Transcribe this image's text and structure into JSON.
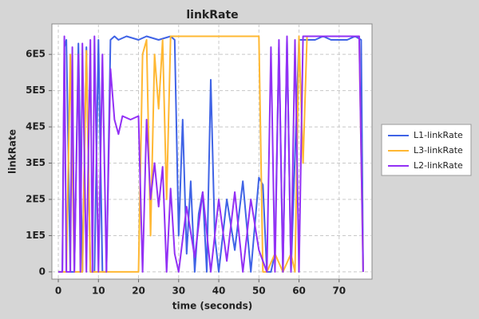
{
  "chart_data": {
    "type": "line",
    "title": "linkRate",
    "x_label": "time (seconds)",
    "y_label": "linkRate",
    "xlim": [
      -1.6,
      78.2
    ],
    "xticks": [
      0,
      10,
      20,
      30,
      40,
      50,
      60,
      70
    ],
    "ylim": [
      -20000,
      684000
    ],
    "yticks": [
      0,
      {
        "value": 100000,
        "label": "1E5"
      },
      {
        "value": 200000,
        "label": "2E5"
      },
      {
        "value": 300000,
        "label": "3E5"
      },
      {
        "value": 400000,
        "label": "4E5"
      },
      {
        "value": 500000,
        "label": "5E5"
      },
      {
        "value": 600000,
        "label": "6E5"
      }
    ],
    "grid": true,
    "legend": "right",
    "series": [
      {
        "name": "L1-linkRate",
        "color": "#3f63e6",
        "x": [
          0,
          1,
          1.5,
          2,
          3,
          4,
          5,
          6,
          7,
          8,
          9,
          10,
          11,
          12,
          13,
          14,
          15,
          17,
          20,
          22,
          25,
          28,
          29,
          30,
          31,
          32,
          33,
          34,
          35,
          36,
          37,
          38,
          39,
          40,
          42,
          44,
          46,
          48,
          50,
          51,
          52,
          53,
          54,
          55,
          56,
          57,
          58,
          60,
          62,
          64,
          66,
          68,
          70,
          72,
          74,
          75.5,
          76
        ],
        "values": [
          0,
          0,
          620000,
          640000,
          0,
          0,
          630000,
          0,
          620000,
          0,
          0,
          640000,
          0,
          0,
          640000,
          650000,
          640000,
          650000,
          640000,
          650000,
          640000,
          650000,
          640000,
          100000,
          420000,
          50000,
          250000,
          0,
          160000,
          220000,
          0,
          530000,
          100000,
          0,
          200000,
          60000,
          250000,
          0,
          260000,
          240000,
          0,
          0,
          50000,
          620000,
          0,
          640000,
          0,
          640000,
          640000,
          640000,
          650000,
          640000,
          640000,
          640000,
          650000,
          640000,
          0
        ]
      },
      {
        "name": "L3-linkRate",
        "color": "#ffb833",
        "x": [
          0,
          2,
          3,
          4,
          6,
          7,
          8,
          10,
          12,
          14,
          16,
          18,
          20,
          21,
          22,
          23,
          24,
          25,
          26,
          27,
          28,
          30,
          35,
          40,
          45,
          50,
          51,
          52,
          54,
          56,
          58,
          59,
          60,
          61,
          62,
          65,
          70,
          75,
          76
        ],
        "values": [
          0,
          0,
          600000,
          0,
          0,
          610000,
          0,
          0,
          0,
          0,
          0,
          0,
          0,
          600000,
          640000,
          100000,
          600000,
          450000,
          640000,
          200000,
          650000,
          650000,
          650000,
          650000,
          650000,
          650000,
          0,
          0,
          50000,
          0,
          50000,
          0,
          650000,
          300000,
          650000,
          650000,
          650000,
          650000,
          0
        ]
      },
      {
        "name": "L2-linkRate",
        "color": "#9230f5",
        "x": [
          0,
          1,
          1.5,
          2,
          3,
          3.5,
          4,
          5,
          5.5,
          6,
          7,
          8,
          8.5,
          9,
          10,
          11,
          12,
          13,
          14,
          15,
          16,
          18,
          20,
          21,
          22,
          23,
          24,
          25,
          26,
          27,
          28,
          29,
          30,
          32,
          34,
          36,
          38,
          40,
          42,
          44,
          46,
          48,
          50,
          52,
          53,
          54,
          55,
          56,
          57,
          58,
          59,
          60,
          61,
          62,
          65,
          70,
          75,
          76
        ],
        "values": [
          0,
          0,
          650000,
          0,
          0,
          620000,
          0,
          600000,
          0,
          630000,
          0,
          640000,
          0,
          650000,
          0,
          600000,
          0,
          560000,
          420000,
          380000,
          430000,
          420000,
          430000,
          0,
          420000,
          200000,
          300000,
          180000,
          290000,
          0,
          230000,
          50000,
          0,
          180000,
          40000,
          220000,
          0,
          200000,
          30000,
          220000,
          0,
          200000,
          60000,
          0,
          620000,
          0,
          640000,
          0,
          650000,
          0,
          640000,
          0,
          650000,
          650000,
          650000,
          650000,
          650000,
          0
        ]
      }
    ]
  }
}
